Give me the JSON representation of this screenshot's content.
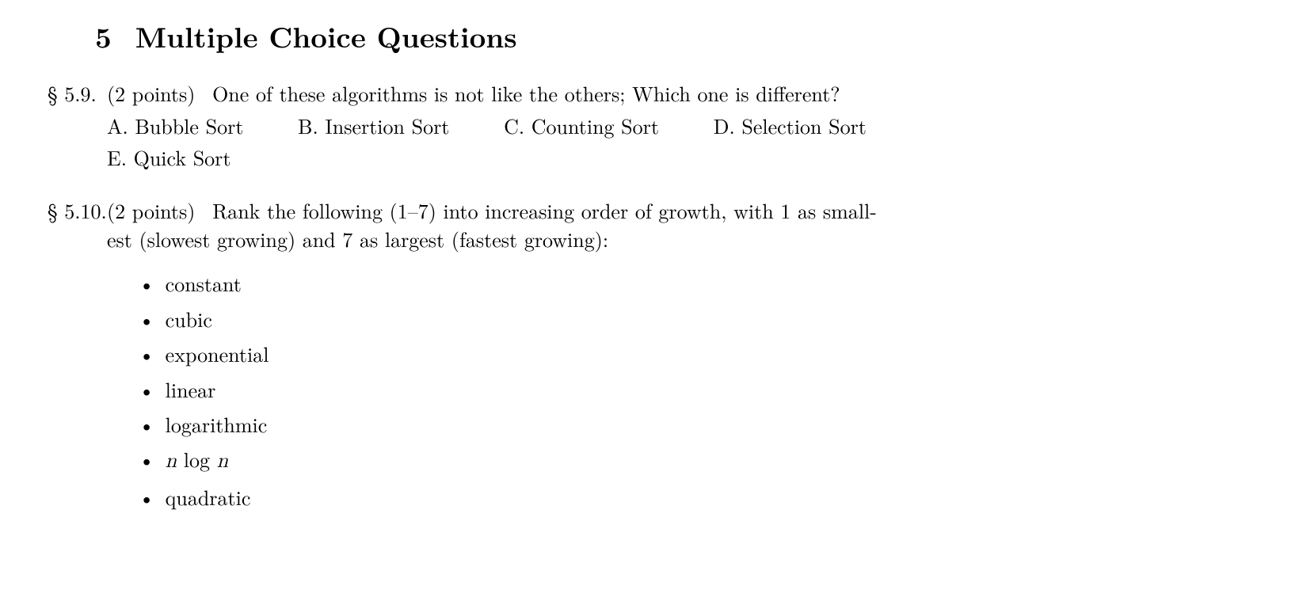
{
  "section": {
    "number": "5",
    "title": "Multiple Choice Questions"
  },
  "questions": [
    {
      "marker": "§ 5.9.",
      "points": "(2 points)",
      "text": "One of these algorithms is not like the others; Which one is different?",
      "choices": [
        {
          "letter": "A.",
          "text": "Bubble Sort"
        },
        {
          "letter": "B.",
          "text": "Insertion Sort"
        },
        {
          "letter": "C.",
          "text": "Counting Sort"
        },
        {
          "letter": "D.",
          "text": "Selection Sort"
        },
        {
          "letter": "E.",
          "text": "Quick Sort"
        }
      ]
    },
    {
      "marker": "§ 5.10.",
      "points": "(2 points)",
      "text_line1": "Rank the following (1–7) into increasing order of growth, with 1 as small-",
      "text_line2": "est (slowest growing) and 7 as largest (fastest growing):",
      "bullets": [
        "constant",
        "cubic",
        "exponential",
        "linear",
        "logarithmic",
        "n log n",
        "quadratic"
      ]
    }
  ],
  "styling": {
    "text_color": "#000000",
    "background_color": "#ffffff",
    "body_fontsize": 26,
    "header_fontsize": 36,
    "font_family": "Computer Modern / Latin Modern serif"
  }
}
